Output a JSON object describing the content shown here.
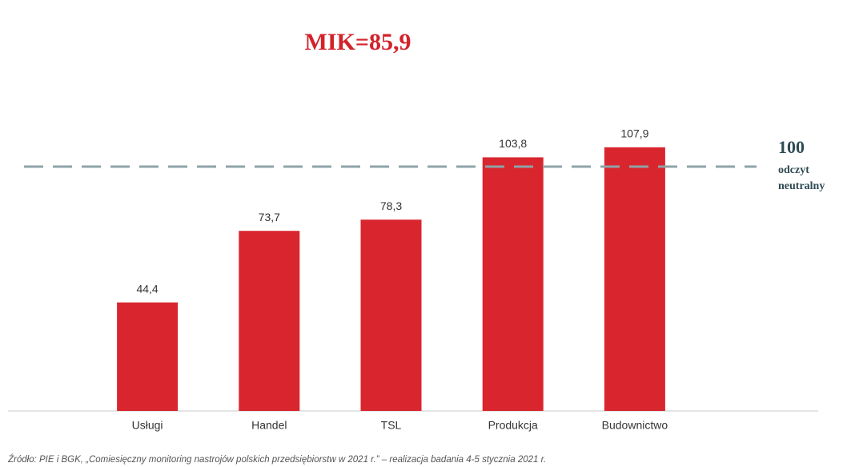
{
  "chart_data": {
    "type": "bar",
    "subtitle": "MIK=85,9",
    "categories": [
      "Usługi",
      "Handel",
      "TSL",
      "Produkcja",
      "Budownictwo"
    ],
    "values": [
      44.4,
      73.7,
      78.3,
      103.8,
      107.9
    ],
    "value_labels": [
      "44,4",
      "73,7",
      "78,3",
      "103,8",
      "107,9"
    ],
    "color": "#d9262e",
    "ylim": [
      0,
      120
    ],
    "reference_line": {
      "value": 100,
      "label": 100,
      "note": [
        "odczyt",
        "neutralny"
      ],
      "color": "#8fa3a8"
    },
    "source": "Źródło: PIE i BGK, „Comiesięczny monitoring nastrojów polskich przedsiębiorstw w 2021 r.” – realizacja badania 4-5 stycznia 2021 r."
  }
}
